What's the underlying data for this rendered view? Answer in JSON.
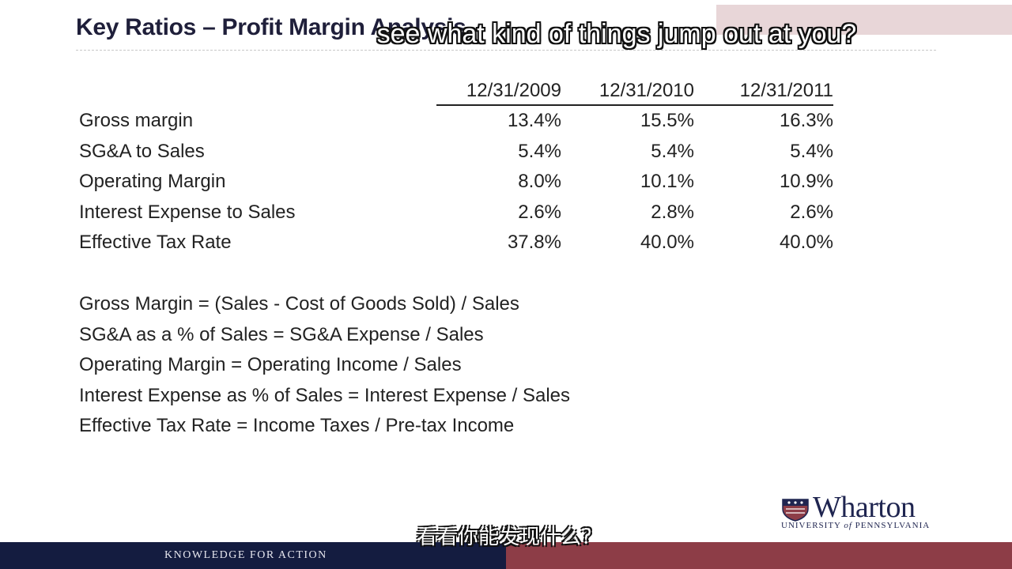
{
  "slide": {
    "title": "Key Ratios – Profit Margin Analysis",
    "table": {
      "headers": [
        "12/31/2009",
        "12/31/2010",
        "12/31/2011"
      ],
      "rows": [
        {
          "label": "Gross margin",
          "values": [
            "13.4%",
            "15.5%",
            "16.3%"
          ]
        },
        {
          "label": "SG&A to Sales",
          "values": [
            "5.4%",
            "5.4%",
            "5.4%"
          ]
        },
        {
          "label": "Operating Margin",
          "values": [
            "8.0%",
            "10.1%",
            "10.9%"
          ]
        },
        {
          "label": "Interest Expense to Sales",
          "values": [
            "2.6%",
            "2.8%",
            "2.6%"
          ]
        },
        {
          "label": "Effective Tax Rate",
          "values": [
            "37.8%",
            "40.0%",
            "40.0%"
          ]
        }
      ]
    },
    "formulas": [
      "Gross Margin = (Sales - Cost of Goods Sold) / Sales",
      "SG&A as a % of Sales = SG&A Expense / Sales",
      "Operating Margin = Operating Income / Sales",
      "Interest Expense as % of Sales = Interest Expense / Sales",
      "Effective Tax Rate = Income Taxes / Pre-tax Income"
    ],
    "logo": {
      "name": "Wharton",
      "sub_prefix": "UNIVERSITY ",
      "sub_of": "of",
      "sub_suffix": " PENNSYLVANIA"
    },
    "footer_tagline": "KNOWLEDGE FOR ACTION"
  },
  "captions": {
    "english": "see what kind of things jump out at you?",
    "chinese": "看看你能发现什么？"
  },
  "colors": {
    "footer_navy": "#141c40",
    "footer_red": "#8d3d47",
    "title_navy": "#1f1f3a"
  }
}
